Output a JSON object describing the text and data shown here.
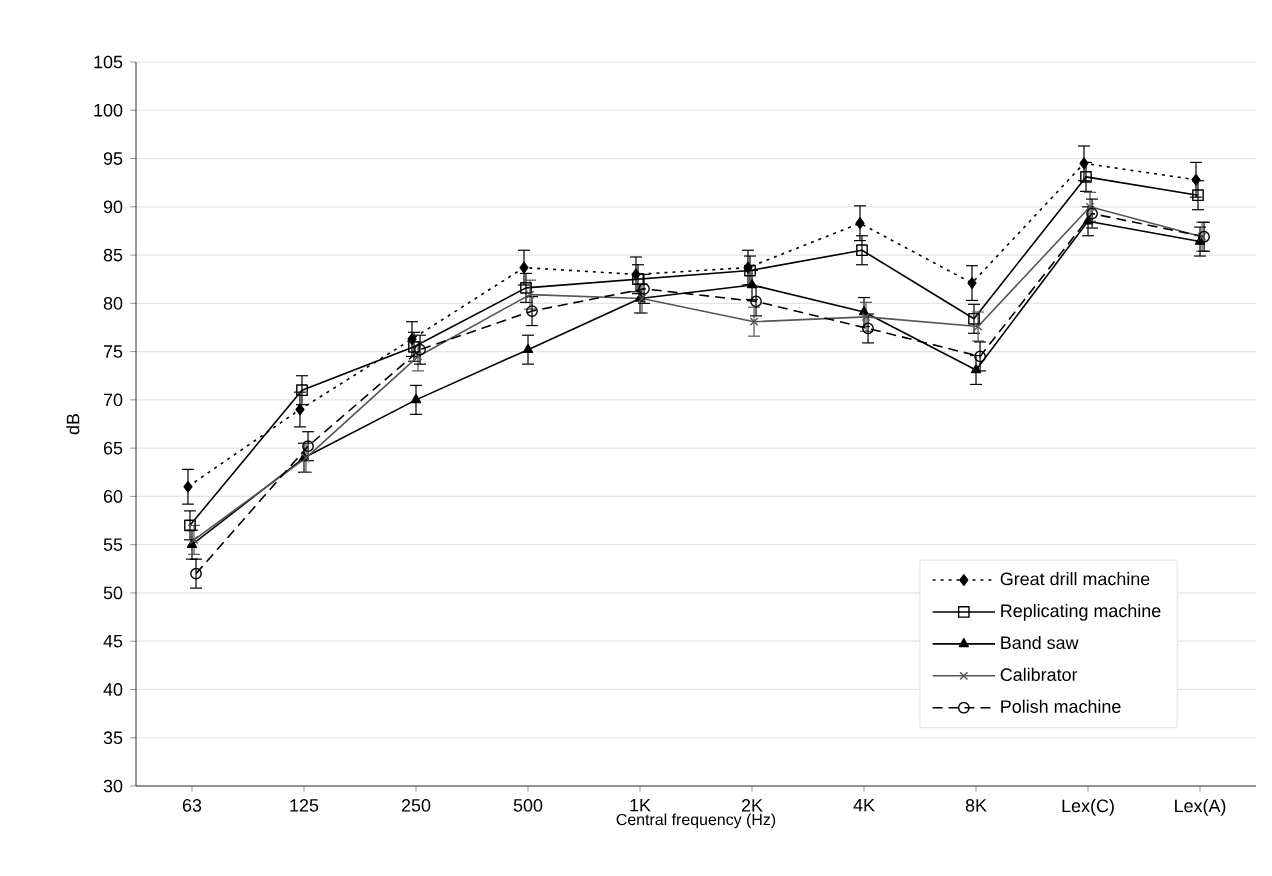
{
  "chart_data": {
    "type": "line",
    "xlabel": "Central frequency (Hz)",
    "ylabel": "dB",
    "categories": [
      "63",
      "125",
      "250",
      "500",
      "1K",
      "2K",
      "4K",
      "8K",
      "Lex(C)",
      "Lex(A)"
    ],
    "ylim": [
      30,
      105
    ],
    "yticks": [
      30,
      35,
      40,
      45,
      50,
      55,
      60,
      65,
      70,
      75,
      80,
      85,
      90,
      95,
      100,
      105
    ],
    "grid": "y",
    "legend": "bottom right",
    "series": [
      {
        "name": "Great drill machine",
        "color": "#000000",
        "marker": "diamond",
        "line_style": "dotted",
        "values": [
          61,
          69,
          76.3,
          83.7,
          83,
          83.7,
          88.3,
          82.1,
          94.5,
          92.8
        ],
        "errors": [
          1.8,
          1.8,
          1.8,
          1.8,
          1.8,
          1.8,
          1.8,
          1.8,
          1.8,
          1.8
        ]
      },
      {
        "name": "Replicating machine",
        "color": "#000000",
        "marker": "square",
        "line_style": "solid",
        "values": [
          57,
          71,
          75.5,
          81.6,
          82.5,
          83.4,
          85.5,
          78.4,
          93.1,
          91.2
        ],
        "errors": [
          1.5,
          1.5,
          1.5,
          1.5,
          1.5,
          1.5,
          1.5,
          1.5,
          1.5,
          1.5
        ]
      },
      {
        "name": "Band saw",
        "color": "#000000",
        "marker": "triangle",
        "line_style": "solid",
        "values": [
          55,
          64,
          70,
          75.2,
          80.5,
          81.9,
          79.1,
          73.1,
          88.5,
          86.4
        ],
        "errors": [
          1.5,
          1.5,
          1.5,
          1.5,
          1.5,
          1.5,
          1.5,
          1.5,
          1.5,
          1.5
        ]
      },
      {
        "name": "Calibrator",
        "color": "#555555",
        "marker": "cross",
        "line_style": "solid",
        "values": [
          55.5,
          64,
          74.5,
          80.9,
          80.5,
          78.1,
          78.6,
          77.6,
          90,
          86.9
        ],
        "errors": [
          1.5,
          1.5,
          1.5,
          1.5,
          1.5,
          1.5,
          1.5,
          1.5,
          1.5,
          1.5
        ]
      },
      {
        "name": "Polish machine",
        "color": "#000000",
        "marker": "circle",
        "line_style": "dashed",
        "values": [
          52,
          65.2,
          75.2,
          79.2,
          81.5,
          80.2,
          77.4,
          74.5,
          89.3,
          86.9
        ],
        "errors": [
          1.5,
          1.5,
          1.5,
          1.5,
          1.5,
          1.5,
          1.5,
          1.5,
          1.5,
          1.5
        ]
      }
    ]
  }
}
